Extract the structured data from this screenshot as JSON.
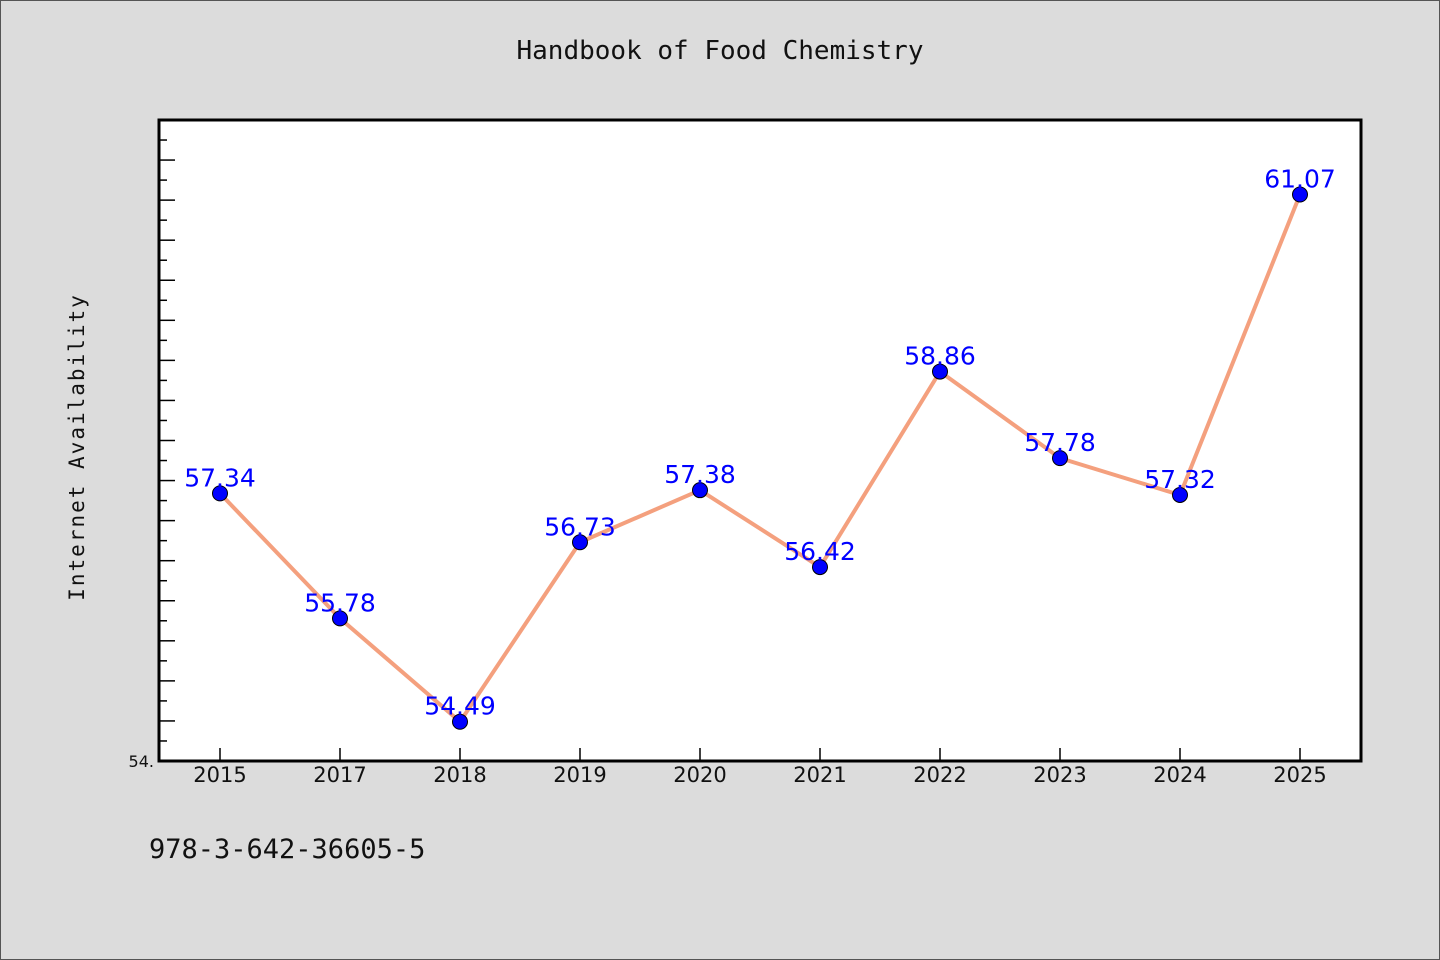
{
  "chart_data": {
    "type": "line",
    "title": "Handbook of Food Chemistry",
    "ylabel": "Internet Availability",
    "xlabel": "",
    "categories": [
      "2015",
      "2017",
      "2018",
      "2019",
      "2020",
      "2021",
      "2022",
      "2023",
      "2024",
      "2025"
    ],
    "series": [
      {
        "values": [
          57.34,
          55.78,
          54.49,
          56.73,
          57.38,
          56.42,
          58.86,
          57.78,
          57.32,
          61.07
        ],
        "data_labels": [
          "57.34",
          "55.78",
          "54.49",
          "56.73",
          "57.38",
          "56.42",
          "58.86",
          "57.78",
          "57.32",
          "61.07"
        ]
      }
    ],
    "ylim": [
      54.0,
      62.0
    ],
    "y_min_label": "54.",
    "grid": false,
    "legend": "none",
    "colors": {
      "line": "#f4a07e",
      "marker": "#0000ff",
      "data_label": "#0000ff",
      "background": "#dcdcdc",
      "plot_area": "#ffffff"
    }
  },
  "footer": {
    "identifier": "978-3-642-36605-5"
  }
}
